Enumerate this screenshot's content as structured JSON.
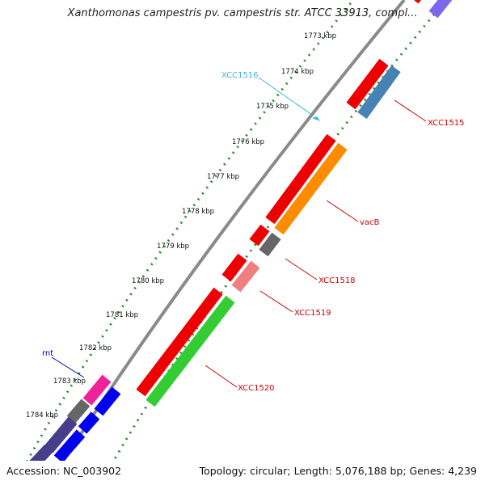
{
  "title": "Xanthomonas campestris pv. campestris str. ATCC 33913, compl...",
  "footer": {
    "accession": "Accession: NC_003902",
    "info": "Topology: circular; Length: 5,076,188 bp; Genes: 4,239"
  },
  "ticks": [
    "1773 kbp",
    "1774 kbp",
    "1775 kbp",
    "1776 kbp",
    "1777 kbp",
    "1778 kbp",
    "1779 kbp",
    "1780 kbp",
    "1781 kbp",
    "1782 kbp",
    "1783 kbp",
    "1784 kbp"
  ],
  "gene_labels": {
    "xcc1516": "XCC1516",
    "xcc1515": "XCC1515",
    "vacB": "vacB",
    "xcc1518": "XCC1518",
    "xcc1519": "XCC1519",
    "xcc1520": "XCC1520",
    "rnt": "rnt"
  },
  "colors": {
    "xcc1516": "#38b8e0",
    "xcc1515": "#cc0000",
    "vacB": "#cc0000",
    "xcc1518": "#cc0000",
    "xcc1519": "#cc0000",
    "xcc1520": "#cc0000",
    "rnt": "#0000aa",
    "backbone": "#8a8a8a",
    "ruler_dots": "#2a8a2a",
    "red_gene": "#ee0000",
    "steelblue_gene": "#4682b4",
    "orange_gene": "#ff8c00",
    "pink_gene": "#f08080",
    "green_gene": "#33cc33",
    "magenta_gene": "#ee2299",
    "blue_gene": "#0000ee",
    "darkslate_gene": "#483d8b",
    "gray_gene": "#666666"
  }
}
